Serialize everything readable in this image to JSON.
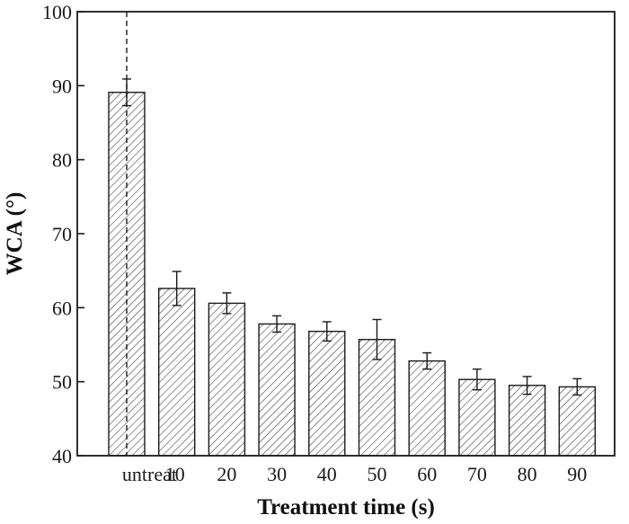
{
  "chart_data": {
    "type": "bar",
    "categories": [
      "untreat",
      "10",
      "20",
      "30",
      "40",
      "50",
      "60",
      "70",
      "80",
      "90"
    ],
    "values": [
      89.1,
      62.6,
      60.6,
      57.8,
      56.8,
      55.7,
      52.8,
      50.3,
      49.5,
      49.3
    ],
    "errors": [
      1.8,
      2.3,
      1.4,
      1.1,
      1.3,
      2.7,
      1.1,
      1.4,
      1.2,
      1.1
    ],
    "xlabel": "Treatment time (s)",
    "ylabel": "WCA (°)",
    "ylim": [
      40,
      100
    ],
    "yticks": [
      "40",
      "50",
      "60",
      "70",
      "80",
      "90",
      "100"
    ],
    "grid": false,
    "bar_fill": "hatched",
    "reference_line": {
      "category": "untreat",
      "style": "dashed"
    },
    "colors": {
      "bar_stroke": "#1a1a1a",
      "hatch": "#333333",
      "axis": "#1a1a1a"
    }
  }
}
